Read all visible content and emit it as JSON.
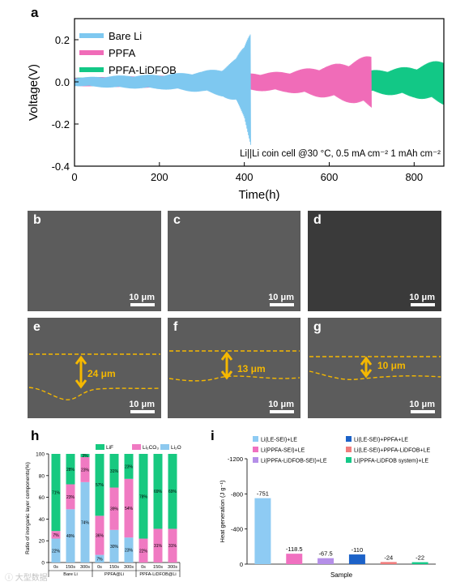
{
  "panel_letters": {
    "a": "a",
    "h": "h",
    "i": "i"
  },
  "colors": {
    "bare_li": "#7ec8f0",
    "ppfa": "#f06cb8",
    "ppfa_lidfob": "#12c886",
    "lif": "#17c980",
    "li2co3": "#f07ac2",
    "li2o": "#8dc9ef",
    "thickness": "#f5b800"
  },
  "chart_data": [
    {
      "type": "line",
      "panel": "a",
      "xlabel": "Time(h)",
      "ylabel": "Voltage(V)",
      "xlim": [
        0,
        870
      ],
      "ylim": [
        -0.4,
        0.3
      ],
      "xticks": [
        "0",
        "200",
        "400",
        "600",
        "800"
      ],
      "yticks": [
        "-0.4",
        "-0.2",
        "0.0",
        "0.2"
      ],
      "annotation": "Li||Li coin cell @30 °C, 0.5 mA cm⁻² 1 mAh cm⁻²",
      "legend_position": "top-left",
      "series": [
        {
          "name": "Bare Li",
          "color": "#7ec8f0",
          "x": [
            0,
            100,
            200,
            300,
            350,
            380,
            400,
            410,
            415
          ],
          "y": [
            0.02,
            0.03,
            0.035,
            0.05,
            0.07,
            0.11,
            0.18,
            0.26,
            0.3
          ]
        },
        {
          "name": "PPFA",
          "color": "#f06cb8",
          "x": [
            0,
            100,
            200,
            300,
            400,
            500,
            600,
            650,
            700
          ],
          "y": [
            0.02,
            0.025,
            0.03,
            0.035,
            0.04,
            0.05,
            0.08,
            0.1,
            0.13
          ]
        },
        {
          "name": "PPFA-LiDFOB",
          "color": "#12c886",
          "x": [
            0,
            200,
            400,
            500,
            600,
            700,
            800,
            870
          ],
          "y": [
            0.02,
            0.022,
            0.025,
            0.03,
            0.04,
            0.055,
            0.075,
            0.11
          ]
        }
      ]
    },
    {
      "type": "bar",
      "panel": "h",
      "stacked": true,
      "ylabel": "Ratio of inorganic layer components(%)",
      "ylim": [
        0,
        100
      ],
      "yticks": [
        "0",
        "20",
        "40",
        "60",
        "80",
        "100"
      ],
      "categories": [
        "0s",
        "150s",
        "300s",
        "0s",
        "150s",
        "300s",
        "0s",
        "150s",
        "300s"
      ],
      "groups": [
        "Bare Li",
        "PPFA@Li",
        "PPFA-LiDFOB@Li"
      ],
      "series": [
        {
          "name": "Li₂O",
          "color": "#8dc9ef",
          "values": [
            22,
            49,
            74,
            7,
            30,
            23,
            0,
            0,
            0
          ]
        },
        {
          "name": "Li₂CO₃",
          "color": "#f07ac2",
          "values": [
            7,
            23,
            23,
            36,
            39,
            54,
            22,
            31,
            31
          ]
        },
        {
          "name": "LiF",
          "color": "#17c980",
          "values": [
            71,
            28,
            3,
            57,
            31,
            23,
            78,
            69,
            69
          ]
        }
      ],
      "data_labels": {
        "li2o": [
          "22%",
          "49%",
          "74%",
          "7%",
          "30%",
          "23%",
          "",
          "",
          ""
        ],
        "li2co3": [
          "7%",
          "23%",
          "23%",
          "36%",
          "39%",
          "54%",
          "22%",
          "31%",
          "31%"
        ],
        "lif": [
          "71%",
          "28%",
          "3%",
          "57%",
          "31%",
          "23%",
          "78%",
          "69%",
          "69%"
        ]
      }
    },
    {
      "type": "bar",
      "panel": "i",
      "xlabel": "Sample",
      "ylabel": "Heat generation (J g⁻¹)",
      "ylim": [
        0,
        -1200
      ],
      "yticks": [
        "0",
        "-400",
        "-800",
        "-1200"
      ],
      "categories": [
        "Li(LE-SEI)+LE",
        "Li(PPFA-SEI)+LE",
        "Li(PPFA-LiDFOB-SEI)+LE",
        "Li(LE-SEI)+PPFA+LE",
        "Li(LE-SEI)+PPFA-LiDFOB+LE",
        "Li(PPFA-LiDFOB system)+LE"
      ],
      "values": [
        -751,
        -118.5,
        -67.5,
        -110,
        -24,
        -22
      ],
      "value_labels": [
        "-751",
        "-118.5",
        "-67.5",
        "-110",
        "-24",
        "-22"
      ],
      "colors": [
        "#8ecbf3",
        "#f070c0",
        "#b58fe8",
        "#1c62c8",
        "#f07c7c",
        "#14c888"
      ],
      "legend_position": "top"
    }
  ],
  "sem_panels": [
    {
      "letter": "b",
      "scale": "10 μm"
    },
    {
      "letter": "c",
      "scale": "10 μm"
    },
    {
      "letter": "d",
      "scale": "10 μm"
    },
    {
      "letter": "e",
      "scale": "10 μm",
      "thickness": "24 μm"
    },
    {
      "letter": "f",
      "scale": "10 μm",
      "thickness": "13 μm"
    },
    {
      "letter": "g",
      "scale": "10 μm",
      "thickness": "10 μm"
    }
  ],
  "watermark": "大型数据"
}
